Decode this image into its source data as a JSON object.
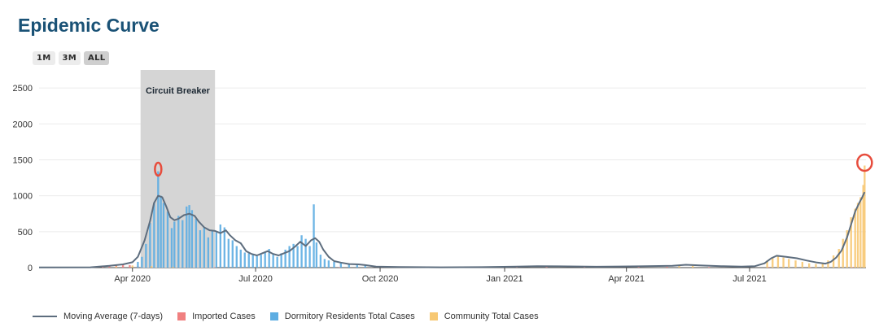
{
  "page": {
    "title": "Epidemic Curve"
  },
  "range_buttons": [
    {
      "label": "1M",
      "active": false
    },
    {
      "label": "3M",
      "active": false
    },
    {
      "label": "ALL",
      "active": true
    }
  ],
  "colors": {
    "moving_average": "#5d6d7e",
    "imported": "#f08080",
    "dormitory": "#5dade2",
    "community": "#f7c873",
    "shaded_region": "#d5d5d5",
    "highlight_circle": "#e74c3c"
  },
  "chart_data": {
    "type": "bar",
    "title": "Epidemic Curve",
    "x_range": [
      "2020-01-23",
      "2021-09-25"
    ],
    "ylim": [
      0,
      2750
    ],
    "y_ticks": [
      0,
      500,
      1000,
      1500,
      2000,
      2500
    ],
    "x_ticks": [
      {
        "date": "2020-04-01",
        "label": "Apr 2020"
      },
      {
        "date": "2020-07-01",
        "label": "Jul 2020"
      },
      {
        "date": "2020-10-01",
        "label": "Oct 2020"
      },
      {
        "date": "2021-01-01",
        "label": "Jan 2021"
      },
      {
        "date": "2021-04-01",
        "label": "Apr 2021"
      },
      {
        "date": "2021-07-01",
        "label": "Jul 2021"
      }
    ],
    "grid": true,
    "legend_position": "bottom",
    "annotation_band": {
      "label": "Circuit Breaker",
      "start": "2020-04-07",
      "end": "2020-06-01"
    },
    "highlight_points": [
      {
        "date": "2020-04-20",
        "value": 1370
      },
      {
        "date": "2021-09-24",
        "value": 1460
      }
    ],
    "series": [
      {
        "name": "Moving Average (7-days)",
        "type": "line",
        "points": [
          [
            "2020-01-23",
            2
          ],
          [
            "2020-03-01",
            5
          ],
          [
            "2020-03-15",
            25
          ],
          [
            "2020-03-25",
            45
          ],
          [
            "2020-04-01",
            75
          ],
          [
            "2020-04-05",
            150
          ],
          [
            "2020-04-10",
            380
          ],
          [
            "2020-04-14",
            650
          ],
          [
            "2020-04-17",
            900
          ],
          [
            "2020-04-20",
            1000
          ],
          [
            "2020-04-23",
            980
          ],
          [
            "2020-04-26",
            850
          ],
          [
            "2020-04-29",
            700
          ],
          [
            "2020-05-02",
            660
          ],
          [
            "2020-05-05",
            680
          ],
          [
            "2020-05-09",
            730
          ],
          [
            "2020-05-13",
            750
          ],
          [
            "2020-05-17",
            720
          ],
          [
            "2020-05-20",
            640
          ],
          [
            "2020-05-24",
            560
          ],
          [
            "2020-05-28",
            520
          ],
          [
            "2020-06-01",
            510
          ],
          [
            "2020-06-05",
            480
          ],
          [
            "2020-06-09",
            520
          ],
          [
            "2020-06-12",
            450
          ],
          [
            "2020-06-16",
            380
          ],
          [
            "2020-06-20",
            340
          ],
          [
            "2020-06-24",
            230
          ],
          [
            "2020-06-28",
            190
          ],
          [
            "2020-07-02",
            170
          ],
          [
            "2020-07-06",
            200
          ],
          [
            "2020-07-10",
            230
          ],
          [
            "2020-07-14",
            190
          ],
          [
            "2020-07-18",
            170
          ],
          [
            "2020-07-22",
            200
          ],
          [
            "2020-07-26",
            230
          ],
          [
            "2020-07-30",
            290
          ],
          [
            "2020-08-03",
            360
          ],
          [
            "2020-08-07",
            300
          ],
          [
            "2020-08-11",
            380
          ],
          [
            "2020-08-14",
            410
          ],
          [
            "2020-08-17",
            360
          ],
          [
            "2020-08-20",
            250
          ],
          [
            "2020-08-24",
            150
          ],
          [
            "2020-08-28",
            90
          ],
          [
            "2020-09-02",
            70
          ],
          [
            "2020-09-08",
            50
          ],
          [
            "2020-09-15",
            45
          ],
          [
            "2020-09-20",
            35
          ],
          [
            "2020-09-28",
            15
          ],
          [
            "2020-10-15",
            8
          ],
          [
            "2020-11-15",
            5
          ],
          [
            "2020-12-15",
            7
          ],
          [
            "2021-01-10",
            15
          ],
          [
            "2021-01-25",
            20
          ],
          [
            "2021-02-10",
            18
          ],
          [
            "2021-03-10",
            12
          ],
          [
            "2021-04-10",
            18
          ],
          [
            "2021-05-05",
            25
          ],
          [
            "2021-05-15",
            40
          ],
          [
            "2021-05-25",
            30
          ],
          [
            "2021-06-10",
            20
          ],
          [
            "2021-06-25",
            15
          ],
          [
            "2021-07-05",
            20
          ],
          [
            "2021-07-12",
            60
          ],
          [
            "2021-07-17",
            130
          ],
          [
            "2021-07-21",
            165
          ],
          [
            "2021-07-28",
            150
          ],
          [
            "2021-08-05",
            130
          ],
          [
            "2021-08-12",
            100
          ],
          [
            "2021-08-20",
            70
          ],
          [
            "2021-08-26",
            55
          ],
          [
            "2021-08-30",
            80
          ],
          [
            "2021-09-03",
            140
          ],
          [
            "2021-09-07",
            240
          ],
          [
            "2021-09-11",
            420
          ],
          [
            "2021-09-14",
            600
          ],
          [
            "2021-09-17",
            780
          ],
          [
            "2021-09-20",
            900
          ],
          [
            "2021-09-22",
            970
          ],
          [
            "2021-09-24",
            1050
          ]
        ]
      },
      {
        "name": "Imported Cases",
        "type": "bar",
        "points": [
          [
            "2020-03-10",
            10
          ],
          [
            "2020-03-15",
            20
          ],
          [
            "2020-03-20",
            40
          ],
          [
            "2020-03-25",
            50
          ],
          [
            "2020-03-30",
            35
          ],
          [
            "2020-04-05",
            20
          ],
          [
            "2020-04-15",
            10
          ],
          [
            "2020-06-01",
            5
          ],
          [
            "2020-09-01",
            8
          ],
          [
            "2020-11-01",
            7
          ],
          [
            "2021-01-10",
            12
          ],
          [
            "2021-02-01",
            10
          ],
          [
            "2021-03-01",
            8
          ],
          [
            "2021-04-10",
            10
          ],
          [
            "2021-05-01",
            12
          ],
          [
            "2021-06-01",
            8
          ],
          [
            "2021-07-15",
            10
          ],
          [
            "2021-08-15",
            8
          ],
          [
            "2021-09-15",
            8
          ]
        ]
      },
      {
        "name": "Dormitory Residents Total Cases",
        "type": "bar",
        "points": [
          [
            "2020-04-05",
            80
          ],
          [
            "2020-04-08",
            150
          ],
          [
            "2020-04-11",
            330
          ],
          [
            "2020-04-14",
            620
          ],
          [
            "2020-04-17",
            900
          ],
          [
            "2020-04-20",
            1340
          ],
          [
            "2020-04-22",
            1000
          ],
          [
            "2020-04-24",
            900
          ],
          [
            "2020-04-27",
            780
          ],
          [
            "2020-04-30",
            550
          ],
          [
            "2020-05-02",
            640
          ],
          [
            "2020-05-05",
            720
          ],
          [
            "2020-05-08",
            660
          ],
          [
            "2020-05-11",
            850
          ],
          [
            "2020-05-13",
            870
          ],
          [
            "2020-05-15",
            800
          ],
          [
            "2020-05-18",
            680
          ],
          [
            "2020-05-21",
            520
          ],
          [
            "2020-05-24",
            560
          ],
          [
            "2020-05-27",
            420
          ],
          [
            "2020-05-30",
            520
          ],
          [
            "2020-06-02",
            490
          ],
          [
            "2020-06-05",
            600
          ],
          [
            "2020-06-08",
            560
          ],
          [
            "2020-06-11",
            400
          ],
          [
            "2020-06-14",
            380
          ],
          [
            "2020-06-17",
            300
          ],
          [
            "2020-06-20",
            250
          ],
          [
            "2020-06-23",
            210
          ],
          [
            "2020-06-26",
            200
          ],
          [
            "2020-06-29",
            190
          ],
          [
            "2020-07-02",
            160
          ],
          [
            "2020-07-05",
            180
          ],
          [
            "2020-07-08",
            220
          ],
          [
            "2020-07-11",
            260
          ],
          [
            "2020-07-14",
            180
          ],
          [
            "2020-07-17",
            150
          ],
          [
            "2020-07-20",
            200
          ],
          [
            "2020-07-23",
            250
          ],
          [
            "2020-07-26",
            300
          ],
          [
            "2020-07-29",
            330
          ],
          [
            "2020-08-01",
            300
          ],
          [
            "2020-08-04",
            450
          ],
          [
            "2020-08-07",
            400
          ],
          [
            "2020-08-10",
            300
          ],
          [
            "2020-08-13",
            880
          ],
          [
            "2020-08-15",
            350
          ],
          [
            "2020-08-18",
            180
          ],
          [
            "2020-08-21",
            120
          ],
          [
            "2020-08-24",
            100
          ],
          [
            "2020-08-28",
            80
          ],
          [
            "2020-09-02",
            70
          ],
          [
            "2020-09-08",
            60
          ],
          [
            "2020-09-14",
            50
          ],
          [
            "2020-09-20",
            35
          ]
        ]
      },
      {
        "name": "Community Total Cases",
        "type": "bar",
        "points": [
          [
            "2020-03-20",
            15
          ],
          [
            "2020-04-01",
            30
          ],
          [
            "2020-04-15",
            20
          ],
          [
            "2020-05-01",
            10
          ],
          [
            "2021-05-10",
            40
          ],
          [
            "2021-05-20",
            25
          ],
          [
            "2021-07-14",
            100
          ],
          [
            "2021-07-18",
            140
          ],
          [
            "2021-07-22",
            160
          ],
          [
            "2021-07-26",
            140
          ],
          [
            "2021-07-30",
            120
          ],
          [
            "2021-08-04",
            100
          ],
          [
            "2021-08-09",
            80
          ],
          [
            "2021-08-14",
            60
          ],
          [
            "2021-08-19",
            50
          ],
          [
            "2021-08-24",
            60
          ],
          [
            "2021-08-28",
            100
          ],
          [
            "2021-09-01",
            170
          ],
          [
            "2021-09-05",
            260
          ],
          [
            "2021-09-08",
            400
          ],
          [
            "2021-09-11",
            520
          ],
          [
            "2021-09-14",
            700
          ],
          [
            "2021-09-17",
            820
          ],
          [
            "2021-09-19",
            900
          ],
          [
            "2021-09-21",
            980
          ],
          [
            "2021-09-23",
            1150
          ],
          [
            "2021-09-24",
            1420
          ]
        ]
      }
    ]
  }
}
